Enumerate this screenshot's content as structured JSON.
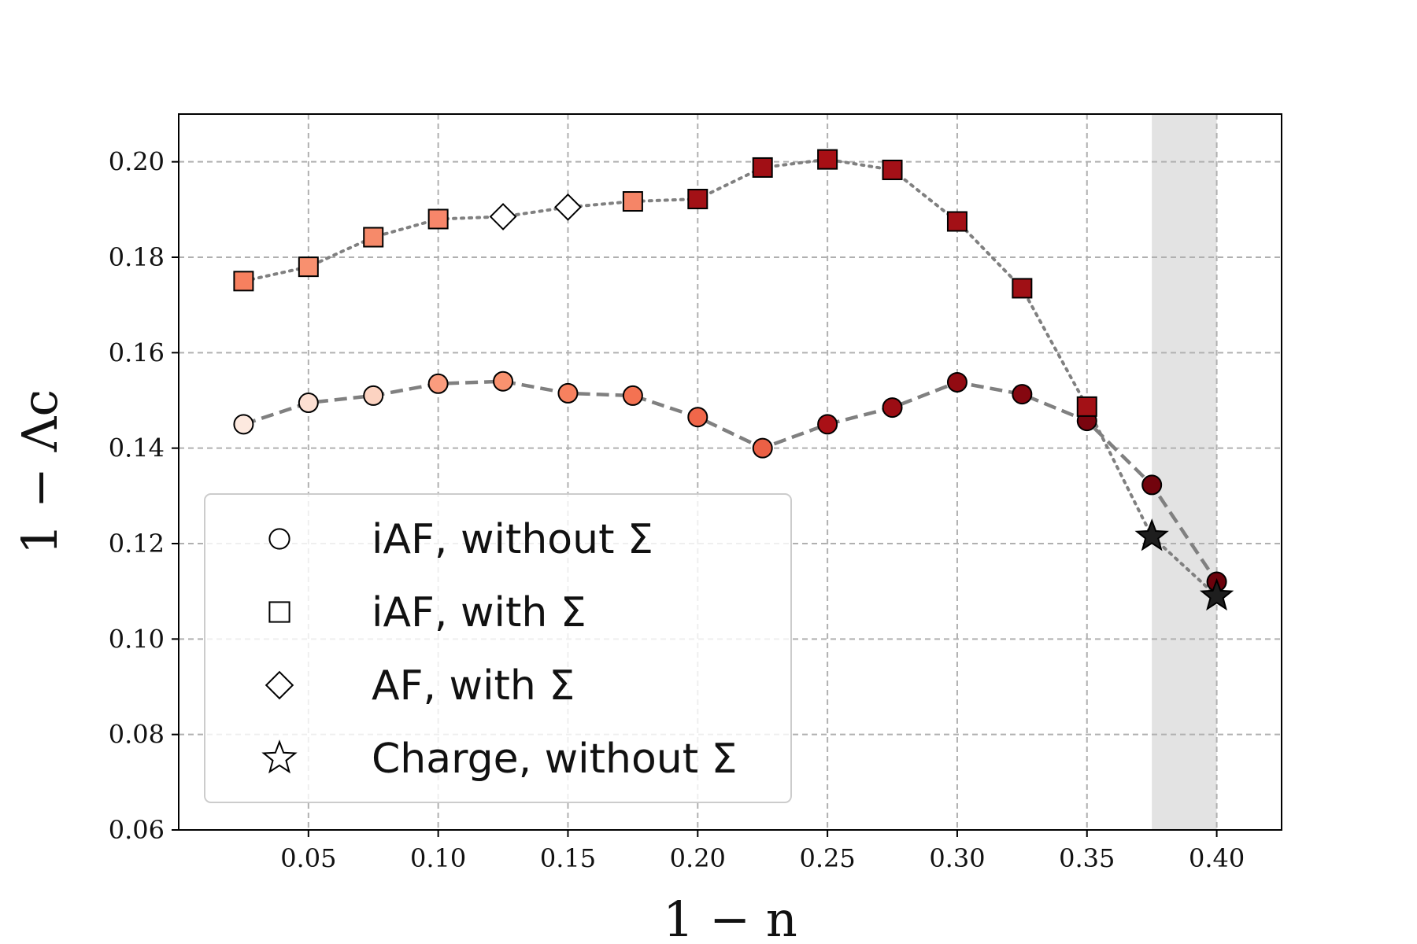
{
  "chart_data": {
    "type": "scatter",
    "xlabel": "1 − n",
    "ylabel": "1 − Λc",
    "xlim": [
      0.0,
      0.425
    ],
    "ylim": [
      0.06,
      0.21
    ],
    "x_ticks": [
      0.05,
      0.1,
      0.15,
      0.2,
      0.25,
      0.3,
      0.35,
      0.4
    ],
    "x_tick_labels": [
      "0.05",
      "0.10",
      "0.15",
      "0.20",
      "0.25",
      "0.30",
      "0.35",
      "0.40"
    ],
    "y_ticks": [
      0.06,
      0.08,
      0.1,
      0.12,
      0.14,
      0.16,
      0.18,
      0.2
    ],
    "y_tick_labels": [
      "0.06",
      "0.08",
      "0.10",
      "0.12",
      "0.14",
      "0.16",
      "0.18",
      "0.20"
    ],
    "grid": true,
    "legend_position": "lower-left",
    "shaded_region": {
      "x": [
        0.375,
        0.4
      ],
      "color": "#e3e3e3"
    },
    "lines": [
      {
        "style": "dashed",
        "color": "#808080",
        "x": [
          0.025,
          0.05,
          0.075,
          0.1,
          0.125,
          0.15,
          0.175,
          0.2,
          0.225,
          0.25,
          0.275,
          0.3,
          0.325,
          0.35,
          0.375,
          0.4
        ],
        "y": [
          0.145,
          0.1495,
          0.151,
          0.1535,
          0.154,
          0.1515,
          0.151,
          0.1465,
          0.14,
          0.145,
          0.1485,
          0.1538,
          0.1513,
          0.1457,
          0.1323,
          0.112
        ]
      },
      {
        "style": "dotted",
        "color": "#808080",
        "x": [
          0.025,
          0.05,
          0.075,
          0.1,
          0.125,
          0.15,
          0.175,
          0.2,
          0.225,
          0.25,
          0.275,
          0.3,
          0.325,
          0.35,
          0.375,
          0.4
        ],
        "y": [
          0.175,
          0.178,
          0.1842,
          0.188,
          0.1885,
          0.1905,
          0.1917,
          0.1922,
          0.1988,
          0.2005,
          0.1983,
          0.1875,
          0.1735,
          0.1487,
          0.1215,
          0.109
        ]
      }
    ],
    "series": [
      {
        "name": "iAF, without Σ",
        "marker": "circle",
        "x": [
          0.025,
          0.05,
          0.075,
          0.1,
          0.125,
          0.15,
          0.175,
          0.2,
          0.225,
          0.25,
          0.275,
          0.3,
          0.325,
          0.35,
          0.375,
          0.4
        ],
        "y": [
          0.145,
          0.1495,
          0.151,
          0.1535,
          0.154,
          0.1515,
          0.151,
          0.1465,
          0.14,
          0.145,
          0.1485,
          0.1538,
          0.1513,
          0.1457,
          0.1323,
          0.112
        ],
        "colors": [
          "#fde9df",
          "#fcdfd2",
          "#fcd3c1",
          "#fa9c7e",
          "#f9926f",
          "#f7815f",
          "#f47252",
          "#f0674a",
          "#eb6045",
          "#a91016",
          "#9c0d14",
          "#920b12",
          "#850710",
          "#7a050f",
          "#72040d",
          "#6b020c"
        ]
      },
      {
        "name": "iAF, with Σ",
        "marker": "square",
        "x": [
          0.025,
          0.05,
          0.075,
          0.1,
          0.175,
          0.2,
          0.225,
          0.25,
          0.275,
          0.3,
          0.325,
          0.35
        ],
        "y": [
          0.175,
          0.178,
          0.1842,
          0.188,
          0.1917,
          0.1922,
          0.1988,
          0.2005,
          0.1983,
          0.1875,
          0.1735,
          0.1487
        ],
        "colors": [
          "#f7805f",
          "#f8906f",
          "#f68a6a",
          "#f7866a",
          "#f58567",
          "#a31116",
          "#a10f15",
          "#a80f15",
          "#a41017",
          "#a31016",
          "#a01015",
          "#a31116"
        ]
      },
      {
        "name": "AF, with Σ",
        "marker": "diamond",
        "x": [
          0.125,
          0.15
        ],
        "y": [
          0.1885,
          0.1905
        ],
        "colors": [
          "#ffffff",
          "#ffffff"
        ]
      },
      {
        "name": "Charge, without Σ",
        "marker": "star",
        "x": [
          0.375,
          0.4
        ],
        "y": [
          0.1215,
          0.109
        ],
        "colors": [
          "#1e1e1e",
          "#1e1e1e"
        ]
      }
    ],
    "legend": [
      {
        "marker": "circle",
        "label": "iAF, without Σ"
      },
      {
        "marker": "square",
        "label": "iAF, with Σ"
      },
      {
        "marker": "diamond",
        "label": "AF, with Σ"
      },
      {
        "marker": "star",
        "label": "Charge, without Σ"
      }
    ]
  }
}
